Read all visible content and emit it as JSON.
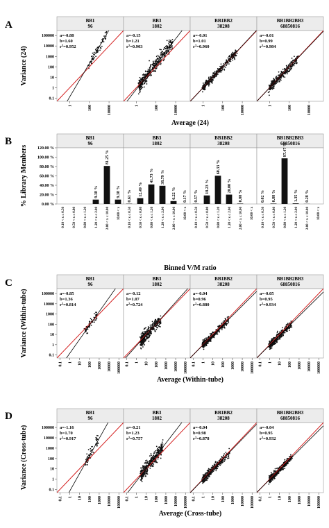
{
  "chart_data": [
    {
      "type": "scatter",
      "panel": "A",
      "ylabel": "Variance (24)",
      "xlabel": "Average (24)",
      "y_ticks": [
        "0.1",
        "1",
        "10",
        "100",
        "1000",
        "10000",
        "100000"
      ],
      "x_ticks": [
        "1",
        "100",
        "10000"
      ],
      "log_scale": true,
      "ylim": [
        0.05,
        300000
      ],
      "xlim": [
        0.05,
        300000
      ],
      "facets": [
        {
          "name": "BB1",
          "count": "96",
          "a": "a=-0.88",
          "b": "b=1.60",
          "r2": "0.952",
          "a_val": -0.88,
          "b_val": 1.6,
          "x_range": [
            60,
            6000
          ]
        },
        {
          "name": "BB3",
          "count": "1802",
          "a": "a=-0.15",
          "b": "b=1.21",
          "r2": "0.903",
          "a_val": -0.15,
          "b_val": 1.21,
          "x_range": [
            2,
            5000
          ]
        },
        {
          "name": "BB1BB2",
          "count": "38208",
          "a": "a=-0.01",
          "b": "b=1.01",
          "r2": "0.960",
          "a_val": -0.01,
          "b_val": 1.01,
          "x_range": [
            1,
            3000
          ]
        },
        {
          "name": "BB1BB2BB3",
          "count": "68850816",
          "a": "a=-0.01",
          "b": "b=0.99",
          "r2": "0.984",
          "a_val": -0.01,
          "b_val": 0.99,
          "x_range": [
            1,
            800
          ]
        }
      ]
    },
    {
      "type": "bar",
      "panel": "B",
      "ylabel": "% Library Members",
      "xlabel": "Binned V/M ratio",
      "y_ticks": [
        "0.00 %",
        "20.00 %",
        "40.00 %",
        "60.00 %",
        "80.00 %",
        "100.00 %",
        "120.00 %"
      ],
      "ylim": [
        0,
        120
      ],
      "categories": [
        "0.10 < x ≤ 0.50",
        "0.50 < x ≤ 0.80",
        "0.80 < x ≤ 1.20",
        "1.20 < x ≤ 2.00",
        "2.00 < x ≤ 10.00",
        "10.00 < x"
      ],
      "facets": [
        {
          "name": "BB1",
          "count": "96",
          "values": [
            0,
            0,
            0,
            9.38,
            81.25,
            9.38
          ],
          "labels": [
            "",
            "",
            "",
            "9.38 %",
            "81.25 %",
            "9.38 %"
          ]
        },
        {
          "name": "BB3",
          "count": "1802",
          "values": [
            0.61,
            12.49,
            41.73,
            38.79,
            6.22,
            0.17
          ],
          "labels": [
            "0.61 %",
            "12.49 %",
            "41.73 %",
            "38.79 %",
            "6.22 %",
            "0.17 %"
          ]
        },
        {
          "name": "BB1BB2",
          "count": "38208",
          "values": [
            0.57,
            18.23,
            60.33,
            20.0,
            0.88,
            0
          ],
          "labels": [
            "0.57 %",
            "18.23 %",
            "60.33 %",
            "20.00 %",
            "0.88 %",
            ""
          ]
        },
        {
          "name": "BB1BB2BB3",
          "count": "68850816",
          "values": [
            0.02,
            0.88,
            97.47,
            1.35,
            0.28,
            0
          ],
          "labels": [
            "0.02 %",
            "0.88 %",
            "97.47 %",
            "1.35 %",
            "0.28 %",
            ""
          ]
        }
      ]
    },
    {
      "type": "scatter",
      "panel": "C",
      "ylabel": "Variance (Within-tube)",
      "xlabel": "Average (Within-tube)",
      "y_ticks": [
        "0.1",
        "1",
        "10",
        "100",
        "1000",
        "10000",
        "100000"
      ],
      "x_ticks": [
        "0.1",
        "1",
        "10",
        "100",
        "1000",
        "10000",
        "100000"
      ],
      "log_scale": true,
      "ylim": [
        0.05,
        300000
      ],
      "xlim": [
        0.05,
        300000
      ],
      "facets": [
        {
          "name": "BB1",
          "count": "96",
          "a": "a=-0.85",
          "b": "b=1.36",
          "r2": "0.814",
          "a_val": -0.85,
          "b_val": 1.36,
          "x_range": [
            40,
            600
          ]
        },
        {
          "name": "BB3",
          "count": "1802",
          "a": "a=-0.12",
          "b": "b=1.07",
          "r2": "0.724",
          "a_val": -0.12,
          "b_val": 1.07,
          "x_range": [
            3,
            300
          ]
        },
        {
          "name": "BB1BB2",
          "count": "38208",
          "a": "a=-0.04",
          "b": "b=0.96",
          "r2": "0.880",
          "a_val": -0.04,
          "b_val": 0.96,
          "x_range": [
            1,
            400
          ]
        },
        {
          "name": "BB1BB2BB3",
          "count": "68850816",
          "a": "a=-0.05",
          "b": "b=0.95",
          "r2": "0.934",
          "a_val": -0.05,
          "b_val": 0.95,
          "x_range": [
            1,
            200
          ]
        }
      ]
    },
    {
      "type": "scatter",
      "panel": "D",
      "ylabel": "Variance (Cross-tube)",
      "xlabel": "Average (Cross-tube)",
      "y_ticks": [
        "0.1",
        "1",
        "10",
        "100",
        "1000",
        "10000",
        "100000"
      ],
      "x_ticks": [
        "0.1",
        "1",
        "10",
        "100",
        "1000",
        "10000",
        "100000"
      ],
      "log_scale": true,
      "ylim": [
        0.05,
        300000
      ],
      "xlim": [
        0.05,
        300000
      ],
      "facets": [
        {
          "name": "BB1",
          "count": "96",
          "a": "a=-1.16",
          "b": "b=1.70",
          "r2": "0.917",
          "a_val": -1.16,
          "b_val": 1.7,
          "x_range": [
            40,
            800
          ]
        },
        {
          "name": "BB3",
          "count": "1802",
          "a": "a=-0.21",
          "b": "b=1.23",
          "r2": "0.757",
          "a_val": -0.21,
          "b_val": 1.23,
          "x_range": [
            3,
            500
          ]
        },
        {
          "name": "BB1BB2",
          "count": "38208",
          "a": "a=-0.04",
          "b": "b=0.98",
          "r2": "0.878",
          "a_val": -0.04,
          "b_val": 0.98,
          "x_range": [
            1,
            500
          ]
        },
        {
          "name": "BB1BB2BB3",
          "count": "68850816",
          "a": "a=-0.04",
          "b": "b=0.95",
          "r2": "0.932",
          "a_val": -0.04,
          "b_val": 0.95,
          "x_range": [
            1,
            200
          ]
        }
      ]
    }
  ],
  "colors": {
    "identity_line": "#d42020",
    "fit_line": "#000000",
    "points": "#111111",
    "bars": "#111111",
    "facet_header": "#ececec",
    "panel_border": "#9a9a9a"
  }
}
